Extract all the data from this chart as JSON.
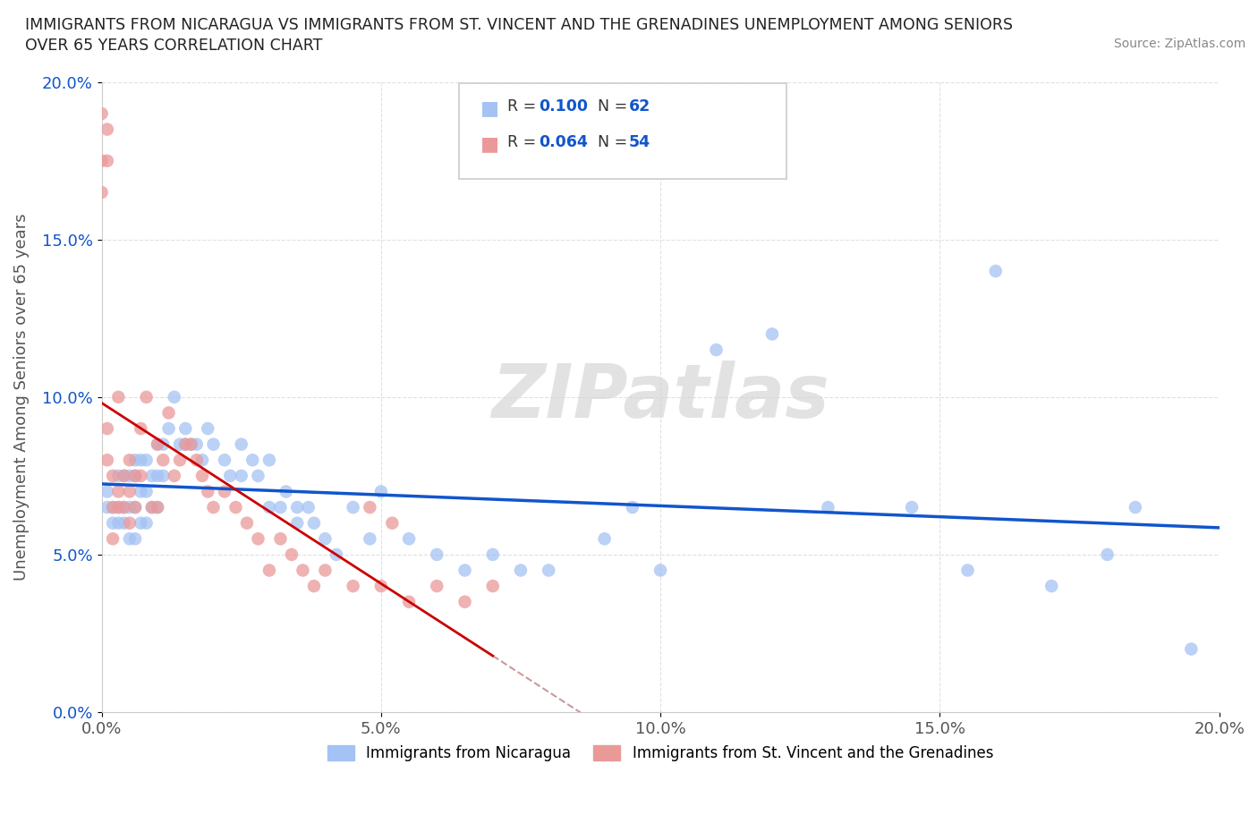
{
  "title_line1": "IMMIGRANTS FROM NICARAGUA VS IMMIGRANTS FROM ST. VINCENT AND THE GRENADINES UNEMPLOYMENT AMONG SENIORS",
  "title_line2": "OVER 65 YEARS CORRELATION CHART",
  "source": "Source: ZipAtlas.com",
  "ylabel": "Unemployment Among Seniors over 65 years",
  "xlim": [
    0.0,
    0.2
  ],
  "ylim": [
    0.0,
    0.2
  ],
  "xticks": [
    0.0,
    0.05,
    0.1,
    0.15,
    0.2
  ],
  "yticks": [
    0.0,
    0.05,
    0.1,
    0.15,
    0.2
  ],
  "xticklabels": [
    "0.0%",
    "5.0%",
    "10.0%",
    "15.0%",
    "20.0%"
  ],
  "yticklabels": [
    "0.0%",
    "5.0%",
    "10.0%",
    "15.0%",
    "20.0%"
  ],
  "blue_color": "#a4c2f4",
  "pink_color": "#ea9999",
  "blue_line_color": "#1155cc",
  "pink_line_color": "#cc0000",
  "dash_color": "#cc9999",
  "watermark": "ZIPatlas",
  "legend_label1": "Immigrants from Nicaragua",
  "legend_label2": "Immigrants from St. Vincent and the Grenadines",
  "blue_x": [
    0.001,
    0.001,
    0.002,
    0.002,
    0.003,
    0.003,
    0.003,
    0.004,
    0.004,
    0.004,
    0.005,
    0.005,
    0.005,
    0.006,
    0.006,
    0.006,
    0.006,
    0.007,
    0.007,
    0.007,
    0.008,
    0.008,
    0.008,
    0.009,
    0.009,
    0.01,
    0.01,
    0.01,
    0.011,
    0.011,
    0.012,
    0.013,
    0.014,
    0.015,
    0.015,
    0.016,
    0.017,
    0.018,
    0.019,
    0.02,
    0.022,
    0.023,
    0.025,
    0.025,
    0.027,
    0.028,
    0.03,
    0.03,
    0.032,
    0.033,
    0.035,
    0.035,
    0.037,
    0.038,
    0.04,
    0.042,
    0.045,
    0.048,
    0.05,
    0.055,
    0.06,
    0.065,
    0.07,
    0.075,
    0.08,
    0.09,
    0.095,
    0.1,
    0.11,
    0.12,
    0.13,
    0.145,
    0.155,
    0.16,
    0.17,
    0.18,
    0.185,
    0.195
  ],
  "blue_y": [
    0.065,
    0.07,
    0.065,
    0.06,
    0.075,
    0.065,
    0.06,
    0.075,
    0.065,
    0.06,
    0.075,
    0.065,
    0.055,
    0.08,
    0.075,
    0.065,
    0.055,
    0.08,
    0.07,
    0.06,
    0.08,
    0.07,
    0.06,
    0.075,
    0.065,
    0.085,
    0.075,
    0.065,
    0.085,
    0.075,
    0.09,
    0.1,
    0.085,
    0.09,
    0.085,
    0.085,
    0.085,
    0.08,
    0.09,
    0.085,
    0.08,
    0.075,
    0.085,
    0.075,
    0.08,
    0.075,
    0.08,
    0.065,
    0.065,
    0.07,
    0.065,
    0.06,
    0.065,
    0.06,
    0.055,
    0.05,
    0.065,
    0.055,
    0.07,
    0.055,
    0.05,
    0.045,
    0.05,
    0.045,
    0.045,
    0.055,
    0.065,
    0.045,
    0.115,
    0.12,
    0.065,
    0.065,
    0.045,
    0.14,
    0.04,
    0.05,
    0.065,
    0.02
  ],
  "pink_x": [
    0.0,
    0.0,
    0.0,
    0.001,
    0.001,
    0.001,
    0.001,
    0.002,
    0.002,
    0.002,
    0.003,
    0.003,
    0.003,
    0.004,
    0.004,
    0.005,
    0.005,
    0.005,
    0.006,
    0.006,
    0.007,
    0.007,
    0.008,
    0.009,
    0.01,
    0.01,
    0.011,
    0.012,
    0.013,
    0.014,
    0.015,
    0.016,
    0.017,
    0.018,
    0.019,
    0.02,
    0.022,
    0.024,
    0.026,
    0.028,
    0.03,
    0.032,
    0.034,
    0.036,
    0.038,
    0.04,
    0.045,
    0.048,
    0.05,
    0.052,
    0.055,
    0.06,
    0.065,
    0.07
  ],
  "pink_y": [
    0.19,
    0.175,
    0.165,
    0.185,
    0.175,
    0.09,
    0.08,
    0.075,
    0.065,
    0.055,
    0.1,
    0.07,
    0.065,
    0.075,
    0.065,
    0.08,
    0.07,
    0.06,
    0.075,
    0.065,
    0.09,
    0.075,
    0.1,
    0.065,
    0.085,
    0.065,
    0.08,
    0.095,
    0.075,
    0.08,
    0.085,
    0.085,
    0.08,
    0.075,
    0.07,
    0.065,
    0.07,
    0.065,
    0.06,
    0.055,
    0.045,
    0.055,
    0.05,
    0.045,
    0.04,
    0.045,
    0.04,
    0.065,
    0.04,
    0.06,
    0.035,
    0.04,
    0.035,
    0.04
  ]
}
